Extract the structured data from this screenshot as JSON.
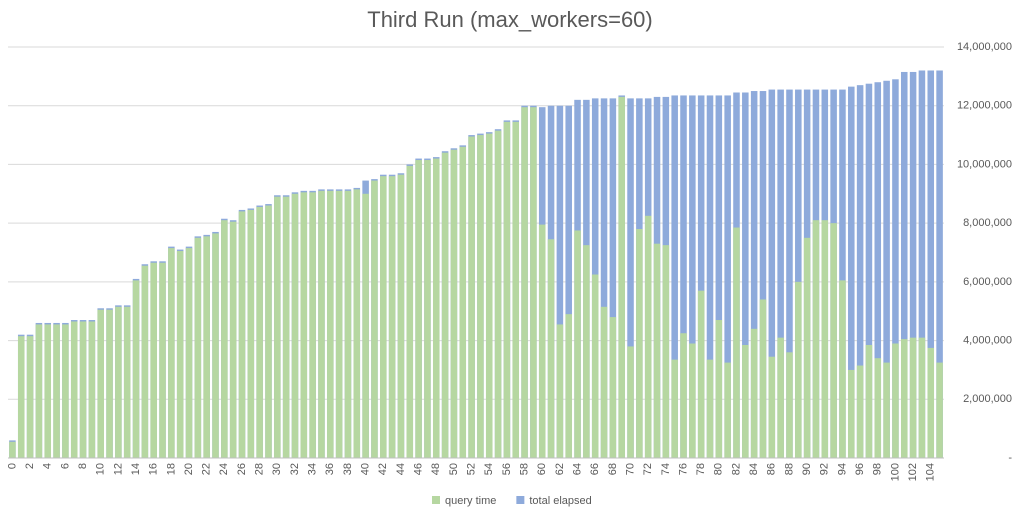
{
  "chart_data": {
    "type": "bar",
    "title": "Third Run (max_workers=60)",
    "categories": [
      "0",
      null,
      "2",
      null,
      "4",
      null,
      "6",
      null,
      "8",
      null,
      "10",
      null,
      "12",
      null,
      "14",
      null,
      "16",
      null,
      "18",
      null,
      "20",
      null,
      "22",
      null,
      "24",
      null,
      "26",
      null,
      "28",
      null,
      "30",
      null,
      "32",
      null,
      "34",
      null,
      "36",
      null,
      "38",
      null,
      "40",
      null,
      "42",
      null,
      "44",
      null,
      "46",
      null,
      "48",
      null,
      "50",
      null,
      "52",
      null,
      "54",
      null,
      "56",
      null,
      "58",
      null,
      "60",
      null,
      "62",
      null,
      "64",
      null,
      "66",
      null,
      "68",
      null,
      "70",
      null,
      "72",
      null,
      "74",
      null,
      "76",
      null,
      "78",
      null,
      "80",
      null,
      "82",
      null,
      "84",
      null,
      "86",
      null,
      "88",
      null,
      "90",
      null,
      "92",
      null,
      "94",
      null,
      "96",
      null,
      "98",
      null,
      "100",
      null,
      "102",
      null,
      "104",
      null
    ],
    "series": [
      {
        "name": "query time",
        "color": "#b6d7a1",
        "values": [
          550000,
          4150000,
          4150000,
          4550000,
          4550000,
          4550000,
          4550000,
          4650000,
          4650000,
          4650000,
          5050000,
          5050000,
          5150000,
          5150000,
          6050000,
          6550000,
          6650000,
          6650000,
          7150000,
          7050000,
          7150000,
          7500000,
          7550000,
          7650000,
          8100000,
          8050000,
          8400000,
          8450000,
          8550000,
          8600000,
          8900000,
          8900000,
          9000000,
          9050000,
          9050000,
          9100000,
          9100000,
          9100000,
          9100000,
          9150000,
          9000000,
          9450000,
          9600000,
          9600000,
          9650000,
          9950000,
          10150000,
          10150000,
          10200000,
          10400000,
          10500000,
          10600000,
          10950000,
          11000000,
          11050000,
          11150000,
          11450000,
          11450000,
          11950000,
          11950000,
          7950000,
          7450000,
          4550000,
          4900000,
          7750000,
          7250000,
          6250000,
          5150000,
          4800000,
          12300000,
          3800000,
          7800000,
          8250000,
          7300000,
          7250000,
          3350000,
          4250000,
          3900000,
          5700000,
          3350000,
          4700000,
          3250000,
          7850000,
          3850000,
          4400000,
          5400000,
          3450000,
          4100000,
          3600000,
          6000000,
          7500000,
          8100000,
          8100000,
          8000000,
          6050000,
          3000000,
          3150000,
          3850000,
          3400000,
          3250000,
          3900000,
          4050000,
          4100000,
          4100000,
          3750000,
          3250000
        ]
      },
      {
        "name": "total elapsed",
        "color": "#8eaadb",
        "values": [
          600000,
          4200000,
          4200000,
          4600000,
          4600000,
          4600000,
          4600000,
          4700000,
          4700000,
          4700000,
          5100000,
          5100000,
          5200000,
          5200000,
          6100000,
          6600000,
          6700000,
          6700000,
          7200000,
          7100000,
          7200000,
          7550000,
          7600000,
          7700000,
          8150000,
          8100000,
          8450000,
          8500000,
          8600000,
          8650000,
          8950000,
          8950000,
          9050000,
          9100000,
          9100000,
          9150000,
          9150000,
          9150000,
          9150000,
          9200000,
          9450000,
          9500000,
          9650000,
          9650000,
          9700000,
          10000000,
          10200000,
          10200000,
          10250000,
          10450000,
          10550000,
          10650000,
          11000000,
          11050000,
          11100000,
          11200000,
          11500000,
          11500000,
          12000000,
          12000000,
          11950000,
          12000000,
          12000000,
          12000000,
          12200000,
          12200000,
          12250000,
          12250000,
          12250000,
          12350000,
          12250000,
          12250000,
          12250000,
          12300000,
          12300000,
          12350000,
          12350000,
          12350000,
          12350000,
          12350000,
          12350000,
          12350000,
          12450000,
          12450000,
          12500000,
          12500000,
          12550000,
          12550000,
          12550000,
          12550000,
          12550000,
          12550000,
          12550000,
          12550000,
          12550000,
          12650000,
          12700000,
          12750000,
          12800000,
          12850000,
          12900000,
          13150000,
          13150000,
          13200000,
          13200000,
          13200000
        ]
      }
    ],
    "ylim": [
      0,
      14000000
    ],
    "yticks": [
      {
        "value": 0,
        "label": "-"
      },
      {
        "value": 2000000,
        "label": "2,000,000"
      },
      {
        "value": 4000000,
        "label": "4,000,000"
      },
      {
        "value": 6000000,
        "label": "6,000,000"
      },
      {
        "value": 8000000,
        "label": "8,000,000"
      },
      {
        "value": 10000000,
        "label": "10,000,000"
      },
      {
        "value": 12000000,
        "label": "12,000,000"
      },
      {
        "value": 14000000,
        "label": "14,000,000"
      }
    ],
    "grid": true,
    "legend": "bottom"
  }
}
